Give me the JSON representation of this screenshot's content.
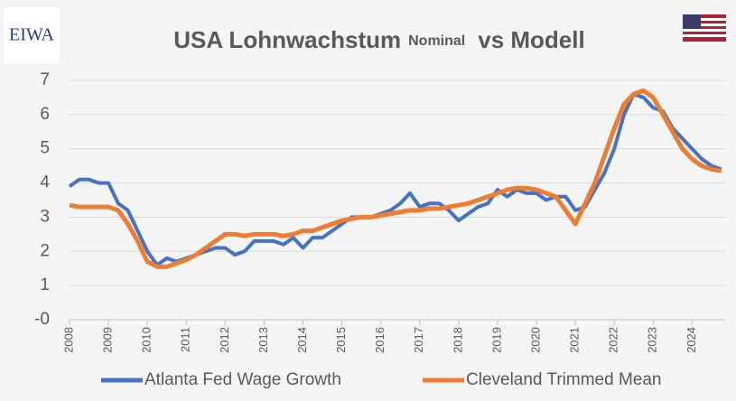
{
  "logo": "EIWA",
  "chart_data": {
    "type": "line",
    "title": "USA Lohnwachstum",
    "title_small": "Nominal",
    "title_end": "vs Modell",
    "x": [
      2008,
      2008.25,
      2008.5,
      2008.75,
      2009,
      2009.25,
      2009.5,
      2009.75,
      2010,
      2010.25,
      2010.5,
      2010.75,
      2011,
      2011.25,
      2011.5,
      2011.75,
      2012,
      2012.25,
      2012.5,
      2012.75,
      2013,
      2013.25,
      2013.5,
      2013.75,
      2014,
      2014.25,
      2014.5,
      2014.75,
      2015,
      2015.25,
      2015.5,
      2015.75,
      2016,
      2016.25,
      2016.5,
      2016.75,
      2017,
      2017.25,
      2017.5,
      2017.75,
      2018,
      2018.25,
      2018.5,
      2018.75,
      2019,
      2019.25,
      2019.5,
      2019.75,
      2020,
      2020.25,
      2020.5,
      2020.75,
      2021,
      2021.25,
      2021.5,
      2021.75,
      2022,
      2022.25,
      2022.5,
      2022.75,
      2023,
      2023.25,
      2023.5,
      2023.75,
      2024,
      2024.25,
      2024.5,
      2024.75
    ],
    "series": [
      {
        "name": "Atlanta Fed Wage Growth",
        "color": "#4472c4",
        "values": [
          3.9,
          4.1,
          4.1,
          4.0,
          4.0,
          3.4,
          3.2,
          2.6,
          2.0,
          1.6,
          1.8,
          1.7,
          1.8,
          1.9,
          2.0,
          2.1,
          2.1,
          1.9,
          2.0,
          2.3,
          2.3,
          2.3,
          2.2,
          2.4,
          2.1,
          2.4,
          2.4,
          2.6,
          2.8,
          3.0,
          3.0,
          3.0,
          3.1,
          3.2,
          3.4,
          3.7,
          3.3,
          3.4,
          3.4,
          3.2,
          2.9,
          3.1,
          3.3,
          3.4,
          3.8,
          3.6,
          3.8,
          3.7,
          3.7,
          3.5,
          3.6,
          3.6,
          3.2,
          3.3,
          3.8,
          4.3,
          5.0,
          6.0,
          6.6,
          6.5,
          6.2,
          6.1,
          5.6,
          5.3,
          5.0,
          4.7,
          4.5,
          4.4
        ]
      },
      {
        "name": "Cleveland Trimmed Mean",
        "color": "#ed7d31",
        "values": [
          3.35,
          3.3,
          3.3,
          3.3,
          3.3,
          3.2,
          2.8,
          2.3,
          1.7,
          1.55,
          1.55,
          1.65,
          1.75,
          1.9,
          2.1,
          2.3,
          2.5,
          2.5,
          2.45,
          2.5,
          2.5,
          2.5,
          2.45,
          2.5,
          2.6,
          2.6,
          2.7,
          2.8,
          2.9,
          2.95,
          3.0,
          3.0,
          3.05,
          3.1,
          3.15,
          3.2,
          3.2,
          3.25,
          3.25,
          3.3,
          3.35,
          3.4,
          3.5,
          3.6,
          3.7,
          3.8,
          3.85,
          3.85,
          3.8,
          3.7,
          3.6,
          3.2,
          2.8,
          3.4,
          4.0,
          4.8,
          5.6,
          6.3,
          6.6,
          6.7,
          6.5,
          6.0,
          5.5,
          5.0,
          4.7,
          4.5,
          4.4,
          4.35
        ]
      }
    ],
    "xlim": [
      2008,
      2024.85
    ],
    "xticks": [
      2008,
      2009,
      2010,
      2011,
      2012,
      2013,
      2014,
      2015,
      2016,
      2017,
      2018,
      2019,
      2020,
      2021,
      2022,
      2023,
      2024
    ],
    "ylim": [
      0,
      7
    ],
    "yticks": [
      {
        "value": 0,
        "label": "-0"
      },
      1,
      2,
      3,
      4,
      5,
      6,
      7
    ],
    "grid": true
  }
}
